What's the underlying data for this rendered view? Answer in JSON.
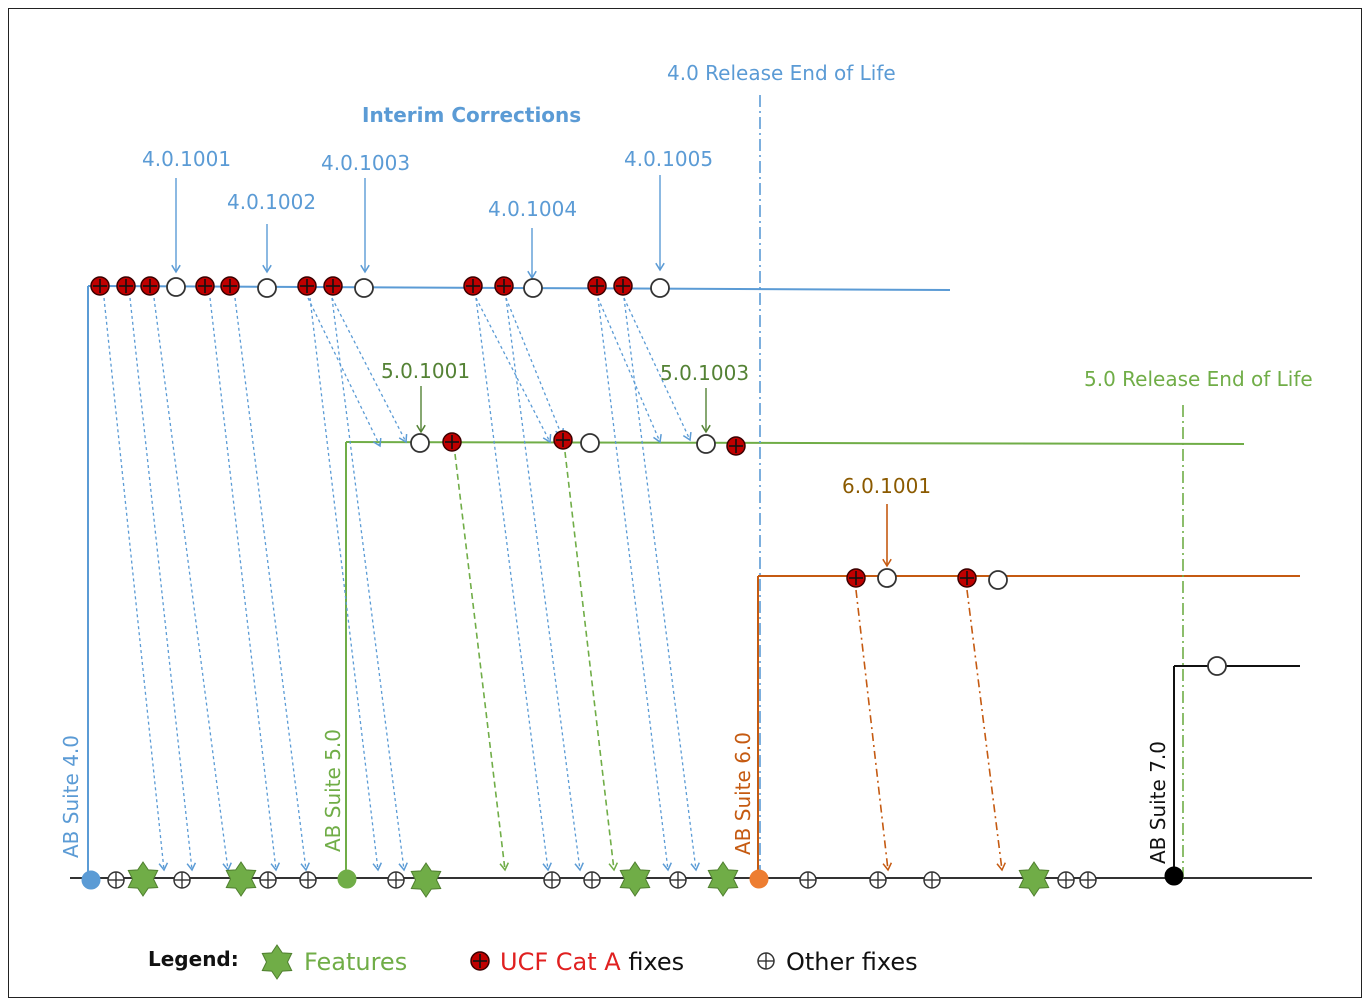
{
  "diagram": {
    "headers": {
      "interim_corrections": "Interim Corrections",
      "eol_40": "4.0 Release End of Life",
      "eol_50": "5.0 Release End of Life"
    },
    "interim_labels": [
      {
        "id": "4.0.1001",
        "text": "4.0.1001"
      },
      {
        "id": "4.0.1002",
        "text": "4.0.1002"
      },
      {
        "id": "4.0.1003",
        "text": "4.0.1003"
      },
      {
        "id": "4.0.1004",
        "text": "4.0.1004"
      },
      {
        "id": "4.0.1005",
        "text": "4.0.1005"
      },
      {
        "id": "5.0.1001",
        "text": "5.0.1001"
      },
      {
        "id": "5.0.1003",
        "text": "5.0.1003"
      },
      {
        "id": "6.0.1001",
        "text": "6.0.1001"
      }
    ],
    "releases": [
      {
        "id": "40",
        "text": "AB Suite 4.0",
        "color": "#5b9bd5"
      },
      {
        "id": "50",
        "text": "AB Suite 5.0",
        "color": "#70ad47"
      },
      {
        "id": "60",
        "text": "AB Suite 6.0",
        "color": "#c55a11"
      },
      {
        "id": "70",
        "text": "AB Suite 7.0",
        "color": "#000000"
      }
    ],
    "colors": {
      "v40": "#5b9bd5",
      "v50": "#70ad47",
      "v60": "#c55a11",
      "v70": "#000000",
      "ucf": "#c00000",
      "interim_40_label": "#5b9bd5",
      "interim_50_label": "#548235",
      "interim_60_label": "#8b5a00"
    }
  },
  "legend": {
    "title": "Legend:",
    "features": "Features",
    "ucf_fixes_a": "UCF Cat A",
    "ucf_fixes_b": " fixes",
    "other_fixes": "Other fixes",
    "features_color": "#70ad47",
    "ucf_color": "#e02020"
  }
}
